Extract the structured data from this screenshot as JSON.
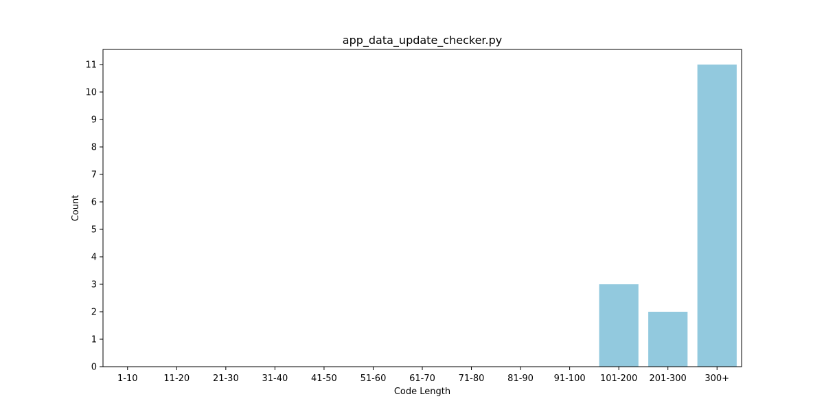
{
  "chart_data": {
    "type": "bar",
    "title": "app_data_update_checker.py",
    "xlabel": "Code Length",
    "ylabel": "Count",
    "categories": [
      "1-10",
      "11-20",
      "21-30",
      "31-40",
      "41-50",
      "51-60",
      "61-70",
      "71-80",
      "81-90",
      "91-100",
      "101-200",
      "201-300",
      "300+"
    ],
    "values": [
      0,
      0,
      0,
      0,
      0,
      0,
      0,
      0,
      0,
      0,
      3,
      2,
      11
    ],
    "ylim": [
      0,
      11.55
    ],
    "yticks": [
      0,
      1,
      2,
      3,
      4,
      5,
      6,
      7,
      8,
      9,
      10,
      11
    ],
    "grid": false,
    "legend": "none",
    "bar_color": "#92c9de"
  }
}
